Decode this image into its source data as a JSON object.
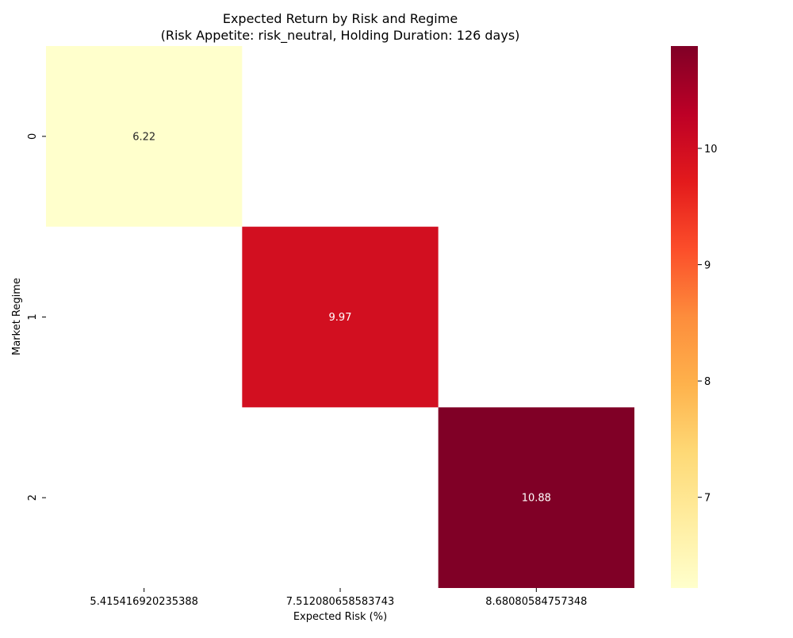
{
  "chart_data": {
    "type": "heatmap",
    "title_line1": "Expected Return by Risk and Regime",
    "title_line2": "(Risk Appetite: risk_neutral, Holding Duration: 126 days)",
    "xlabel": "Expected Risk (%)",
    "ylabel": "Market Regime",
    "x_categories": [
      "5.415416920235388",
      "7.512080658583743",
      "8.68080584757348"
    ],
    "y_categories": [
      "0",
      "1",
      "2"
    ],
    "cells": [
      {
        "row": 0,
        "col": 0,
        "value": 6.22,
        "label": "6.22"
      },
      {
        "row": 1,
        "col": 1,
        "value": 9.97,
        "label": "9.97"
      },
      {
        "row": 2,
        "col": 2,
        "value": 10.88,
        "label": "10.88"
      }
    ],
    "colormap": "YlOrRd",
    "color_range": [
      6.22,
      10.88
    ],
    "colorbar_ticks": [
      "7",
      "8",
      "9",
      "10"
    ],
    "colorbar_tick_values": [
      7,
      8,
      9,
      10
    ],
    "missing_cells_color": "#ffffff",
    "grid": false,
    "legend": "colorbar-right"
  }
}
